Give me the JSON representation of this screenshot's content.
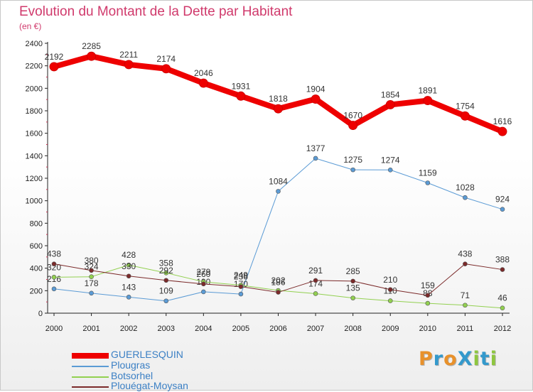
{
  "title": "Evolution du Montant de la Dette par Habitant",
  "subtitle": "(en €)",
  "logo": {
    "text": "ProXiti",
    "colors": [
      "#e8912b",
      "#3399cc",
      "#e8912b",
      "#3399cc",
      "#8ec63f",
      "#3399cc",
      "#8ec63f"
    ]
  },
  "chart_data": {
    "type": "line",
    "title": "Evolution du Montant de la Dette par Habitant",
    "unit": "(en €)",
    "x": [
      "2000",
      "2001",
      "2002",
      "2003",
      "2004",
      "2005",
      "2006",
      "2007",
      "2008",
      "2009",
      "2010",
      "2011",
      "2012"
    ],
    "ylim": [
      0,
      2400
    ],
    "yticks": [
      0,
      200,
      400,
      600,
      800,
      1000,
      1200,
      1400,
      1600,
      1800,
      2000,
      2200,
      2400
    ],
    "grid": false,
    "legend_position": "bottom-left",
    "series": [
      {
        "name": "GUERLESQUIN",
        "color": "#ee0000",
        "values": [
          2192,
          2285,
          2211,
          2174,
          2046,
          1931,
          1818,
          1904,
          1670,
          1854,
          1891,
          1754,
          1616
        ]
      },
      {
        "name": "Plougras",
        "color": "#5b9bd5",
        "values": [
          216,
          178,
          143,
          109,
          190,
          170,
          1084,
          1377,
          1275,
          1274,
          1159,
          1028,
          924
        ]
      },
      {
        "name": "Botsorhel",
        "color": "#92d050",
        "values": [
          320,
          324,
          428,
          358,
          279,
          249,
          202,
          174,
          135,
          110,
          88,
          71,
          46
        ]
      },
      {
        "name": "Plouégat-Moysan",
        "color": "#7b2a2a",
        "values": [
          438,
          380,
          330,
          292,
          260,
          236,
          186,
          291,
          285,
          210,
          159,
          438,
          388
        ]
      }
    ]
  }
}
